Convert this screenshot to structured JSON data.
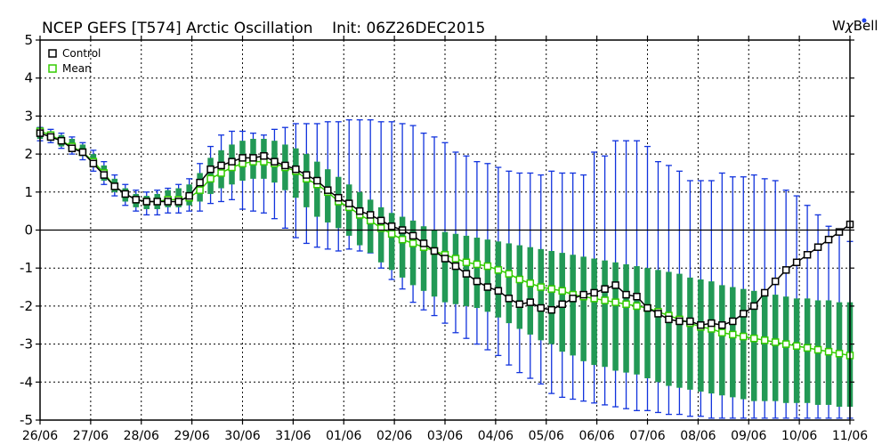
{
  "header": {
    "title": "NCEP GEFS [T574] Arctic Oscillation    Init: 06Z26DEC2015",
    "brand_prefix": "W",
    "brand_chi": "χ",
    "brand_suffix": "Bell"
  },
  "colors": {
    "control": "#000000",
    "mean": "#33cc00",
    "box": "#229955",
    "whisker": "#1133dd",
    "brand_dot": "#2244ee"
  },
  "chart_data": {
    "type": "line",
    "title": "NCEP GEFS [T574] Arctic Oscillation    Init: 06Z26DEC2015",
    "xlabel": "",
    "ylabel": "",
    "ylim": [
      -5,
      5
    ],
    "yticks": [
      "5",
      "4",
      "3",
      "2",
      "1",
      "0",
      "-1",
      "-2",
      "-3",
      "-4",
      "-5"
    ],
    "xticks": [
      "26/06",
      "27/06",
      "28/06",
      "29/06",
      "30/06",
      "31/06",
      "01/06",
      "02/06",
      "03/06",
      "04/06",
      "05/06",
      "06/06",
      "07/06",
      "08/06",
      "09/06",
      "10/06",
      "11/06"
    ],
    "grid": true,
    "legend_position": "top-left",
    "legend": [
      "Control",
      "Mean"
    ],
    "series": [
      {
        "name": "Control",
        "values": [
          2.55,
          2.45,
          2.35,
          2.15,
          2.05,
          1.75,
          1.45,
          1.15,
          0.95,
          0.8,
          0.75,
          0.75,
          0.75,
          0.75,
          0.9,
          1.25,
          1.6,
          1.7,
          1.8,
          1.9,
          1.9,
          1.95,
          1.8,
          1.7,
          1.6,
          1.45,
          1.3,
          1.05,
          0.85,
          0.7,
          0.5,
          0.4,
          0.25,
          0.1,
          0.0,
          -0.15,
          -0.35,
          -0.55,
          -0.75,
          -0.95,
          -1.15,
          -1.35,
          -1.5,
          -1.6,
          -1.8,
          -1.95,
          -1.9,
          -2.05,
          -2.1,
          -1.95,
          -1.8,
          -1.7,
          -1.65,
          -1.55,
          -1.45,
          -1.7,
          -1.75,
          -2.05,
          -2.2,
          -2.35,
          -2.4,
          -2.4,
          -2.5,
          -2.45,
          -2.5,
          -2.4,
          -2.2,
          -2.0,
          -1.65,
          -1.35,
          -1.05,
          -0.85,
          -0.65,
          -0.45,
          -0.25,
          -0.05,
          0.15
        ]
      },
      {
        "name": "Mean",
        "values": [
          2.6,
          2.5,
          2.35,
          2.2,
          2.05,
          1.8,
          1.5,
          1.15,
          0.95,
          0.8,
          0.75,
          0.75,
          0.8,
          0.8,
          0.85,
          1.05,
          1.35,
          1.5,
          1.65,
          1.75,
          1.8,
          1.8,
          1.75,
          1.65,
          1.55,
          1.35,
          1.2,
          1.0,
          0.75,
          0.6,
          0.4,
          0.25,
          0.05,
          -0.1,
          -0.25,
          -0.35,
          -0.45,
          -0.55,
          -0.65,
          -0.75,
          -0.85,
          -0.9,
          -0.95,
          -1.05,
          -1.15,
          -1.3,
          -1.4,
          -1.5,
          -1.55,
          -1.6,
          -1.7,
          -1.75,
          -1.8,
          -1.85,
          -1.9,
          -1.95,
          -2.0,
          -2.05,
          -2.15,
          -2.25,
          -2.35,
          -2.45,
          -2.55,
          -2.6,
          -2.7,
          -2.75,
          -2.8,
          -2.85,
          -2.9,
          -2.95,
          -3.0,
          -3.05,
          -3.1,
          -3.15,
          -3.2,
          -3.25,
          -3.3
        ]
      },
      {
        "name": "",
        "values": [
          2.4,
          2.35,
          2.2,
          2.05,
          1.95,
          1.65,
          1.3,
          1.0,
          0.75,
          0.6,
          0.55,
          0.55,
          0.6,
          0.6,
          0.65,
          0.75,
          0.95,
          1.1,
          1.2,
          1.3,
          1.35,
          1.35,
          1.25,
          1.05,
          0.85,
          0.6,
          0.35,
          0.2,
          0.05,
          -0.15,
          -0.4,
          -0.6,
          -0.85,
          -1.05,
          -1.25,
          -1.45,
          -1.6,
          -1.75,
          -1.9,
          -1.95,
          -2.0,
          -2.05,
          -2.15,
          -2.3,
          -2.45,
          -2.6,
          -2.75,
          -2.9,
          -3.0,
          -3.2,
          -3.3,
          -3.45,
          -3.55,
          -3.6,
          -3.7,
          -3.75,
          -3.8,
          -3.9,
          -4.0,
          -4.1,
          -4.15,
          -4.2,
          -4.25,
          -4.3,
          -4.35,
          -4.4,
          -4.45,
          -4.5,
          -4.5,
          -4.5,
          -4.55,
          -4.55,
          -4.55,
          -4.6,
          -4.6,
          -4.65,
          -4.65
        ]
      },
      {
        "name": "",
        "values": [
          2.65,
          2.55,
          2.5,
          2.4,
          2.25,
          2.0,
          1.7,
          1.35,
          1.1,
          0.95,
          0.9,
          0.95,
          1.05,
          1.1,
          1.2,
          1.5,
          1.9,
          2.1,
          2.25,
          2.35,
          2.4,
          2.4,
          2.35,
          2.25,
          2.15,
          2.0,
          1.8,
          1.6,
          1.4,
          1.2,
          1.0,
          0.8,
          0.6,
          0.45,
          0.35,
          0.25,
          0.1,
          0.0,
          -0.05,
          -0.1,
          -0.15,
          -0.2,
          -0.25,
          -0.3,
          -0.35,
          -0.4,
          -0.45,
          -0.5,
          -0.55,
          -0.6,
          -0.65,
          -0.7,
          -0.75,
          -0.8,
          -0.85,
          -0.9,
          -0.95,
          -1.0,
          -1.05,
          -1.1,
          -1.15,
          -1.25,
          -1.3,
          -1.35,
          -1.45,
          -1.5,
          -1.55,
          -1.6,
          -1.65,
          -1.7,
          -1.75,
          -1.8,
          -1.8,
          -1.85,
          -1.85,
          -1.9,
          -1.9
        ]
      },
      {
        "name": "",
        "values": [
          2.35,
          2.3,
          2.15,
          2.0,
          1.85,
          1.55,
          1.2,
          0.9,
          0.65,
          0.5,
          0.4,
          0.4,
          0.45,
          0.45,
          0.5,
          0.5,
          0.7,
          0.75,
          0.8,
          0.55,
          0.5,
          0.45,
          0.3,
          0.05,
          -0.2,
          -0.35,
          -0.45,
          -0.5,
          -0.55,
          -0.5,
          -0.55,
          -0.6,
          -1.0,
          -1.3,
          -1.55,
          -1.9,
          -2.1,
          -2.25,
          -2.45,
          -2.7,
          -2.85,
          -3.0,
          -3.15,
          -3.3,
          -3.55,
          -3.75,
          -3.9,
          -4.05,
          -4.3,
          -4.4,
          -4.45,
          -4.5,
          -4.55,
          -4.6,
          -4.65,
          -4.7,
          -4.75,
          -4.75,
          -4.8,
          -4.85,
          -4.85,
          -4.9,
          -4.9,
          -4.95,
          -4.95,
          -4.95,
          -4.95,
          -4.95,
          -4.95,
          -4.95,
          -4.95,
          -4.95,
          -4.95,
          -4.95,
          -4.95,
          -4.95,
          -4.95
        ]
      },
      {
        "name": "",
        "values": [
          2.7,
          2.65,
          2.55,
          2.45,
          2.3,
          2.1,
          1.8,
          1.45,
          1.2,
          1.05,
          1.0,
          1.05,
          1.1,
          1.2,
          1.35,
          1.75,
          2.2,
          2.5,
          2.6,
          2.6,
          2.55,
          2.5,
          2.65,
          2.7,
          2.8,
          2.8,
          2.8,
          2.85,
          2.85,
          2.9,
          2.9,
          2.9,
          2.85,
          2.85,
          2.8,
          2.75,
          2.55,
          2.45,
          2.3,
          2.05,
          1.95,
          1.8,
          1.75,
          1.65,
          1.55,
          1.5,
          1.5,
          1.45,
          1.55,
          1.5,
          1.5,
          1.45,
          2.05,
          1.95,
          2.35,
          2.35,
          2.35,
          2.2,
          1.8,
          1.7,
          1.55,
          1.3,
          1.3,
          1.3,
          1.5,
          1.4,
          1.4,
          1.45,
          1.35,
          1.3,
          1.05,
          0.9,
          0.65,
          0.4,
          0.1,
          -0.1,
          -0.3
        ]
      }
    ]
  }
}
